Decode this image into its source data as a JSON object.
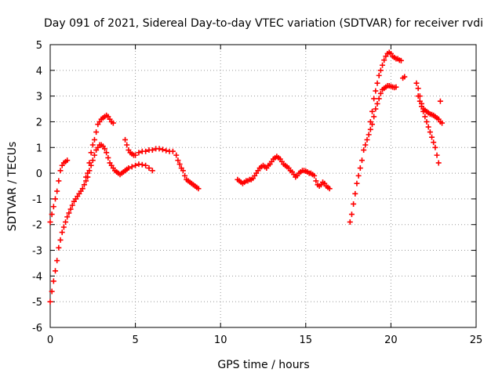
{
  "chart_data": {
    "type": "scatter",
    "title": "Day 091 of 2021, Sidereal Day-to-day VTEC variation (SDTVAR) for receiver rvdi",
    "xlabel": "GPS time / hours",
    "ylabel": "SDTVAR / TECUs",
    "xlim": [
      0,
      25
    ],
    "ylim": [
      -6,
      5
    ],
    "xticks": [
      0,
      5,
      10,
      15,
      20,
      25
    ],
    "yticks": [
      -6,
      -5,
      -4,
      -3,
      -2,
      -1,
      0,
      1,
      2,
      3,
      4,
      5
    ],
    "grid": true,
    "marker": "+",
    "color": "#ff0000",
    "series": [
      {
        "name": "seg1a",
        "points": [
          [
            0.0,
            -5.0
          ],
          [
            0.1,
            -4.6
          ],
          [
            0.2,
            -4.2
          ],
          [
            0.3,
            -3.8
          ],
          [
            0.4,
            -3.4
          ],
          [
            0.5,
            -2.9
          ],
          [
            0.6,
            -2.6
          ],
          [
            0.7,
            -2.3
          ],
          [
            0.8,
            -2.1
          ],
          [
            0.9,
            -1.9
          ],
          [
            1.0,
            -1.7
          ],
          [
            1.1,
            -1.55
          ],
          [
            1.2,
            -1.4
          ],
          [
            1.3,
            -1.25
          ],
          [
            1.4,
            -1.1
          ],
          [
            1.5,
            -1.0
          ],
          [
            1.6,
            -0.9
          ],
          [
            1.7,
            -0.8
          ],
          [
            1.8,
            -0.7
          ],
          [
            1.9,
            -0.6
          ],
          [
            2.0,
            -0.45
          ],
          [
            2.1,
            -0.3
          ],
          [
            2.2,
            -0.15
          ],
          [
            2.3,
            0.1
          ],
          [
            2.4,
            0.3
          ],
          [
            2.5,
            0.5
          ],
          [
            2.6,
            0.7
          ],
          [
            2.7,
            0.9
          ],
          [
            2.8,
            1.0
          ],
          [
            2.9,
            1.1
          ],
          [
            3.0,
            1.1
          ],
          [
            3.1,
            1.05
          ],
          [
            3.2,
            0.95
          ],
          [
            3.3,
            0.8
          ],
          [
            3.4,
            0.6
          ],
          [
            3.5,
            0.4
          ],
          [
            3.6,
            0.3
          ],
          [
            3.7,
            0.2
          ],
          [
            3.8,
            0.1
          ],
          [
            3.9,
            0.05
          ],
          [
            4.0,
            0.0
          ],
          [
            4.1,
            -0.05
          ],
          [
            4.2,
            0.0
          ],
          [
            4.3,
            0.05
          ],
          [
            4.4,
            0.1
          ],
          [
            4.5,
            0.15
          ],
          [
            4.6,
            0.2
          ],
          [
            4.8,
            0.25
          ],
          [
            5.0,
            0.3
          ],
          [
            5.2,
            0.35
          ],
          [
            5.4,
            0.33
          ],
          [
            5.6,
            0.3
          ],
          [
            5.8,
            0.2
          ],
          [
            6.0,
            0.1
          ]
        ]
      },
      {
        "name": "seg1b",
        "points": [
          [
            0.0,
            -1.9
          ],
          [
            0.1,
            -1.6
          ],
          [
            0.2,
            -1.3
          ],
          [
            0.3,
            -1.0
          ],
          [
            0.4,
            -0.7
          ],
          [
            0.5,
            -0.3
          ],
          [
            0.6,
            0.1
          ],
          [
            0.7,
            0.3
          ],
          [
            0.8,
            0.4
          ],
          [
            0.9,
            0.45
          ],
          [
            1.0,
            0.5
          ],
          [
            2.1,
            -0.15
          ],
          [
            2.2,
            0.0
          ],
          [
            2.3,
            0.4
          ],
          [
            2.4,
            0.8
          ],
          [
            2.5,
            1.1
          ],
          [
            2.6,
            1.3
          ],
          [
            2.7,
            1.6
          ],
          [
            2.8,
            1.9
          ],
          [
            2.9,
            2.0
          ],
          [
            3.0,
            2.1
          ],
          [
            3.1,
            2.15
          ],
          [
            3.2,
            2.2
          ],
          [
            3.3,
            2.25
          ],
          [
            3.4,
            2.2
          ],
          [
            3.5,
            2.1
          ],
          [
            3.6,
            2.0
          ],
          [
            3.7,
            1.95
          ],
          [
            4.4,
            1.3
          ],
          [
            4.5,
            1.1
          ],
          [
            4.6,
            0.9
          ],
          [
            4.7,
            0.8
          ],
          [
            4.8,
            0.75
          ],
          [
            4.9,
            0.7
          ],
          [
            5.0,
            0.7
          ],
          [
            5.2,
            0.8
          ],
          [
            5.4,
            0.85
          ],
          [
            5.6,
            0.85
          ],
          [
            5.8,
            0.9
          ],
          [
            6.0,
            0.9
          ],
          [
            6.2,
            0.95
          ],
          [
            6.4,
            0.95
          ],
          [
            6.6,
            0.92
          ],
          [
            6.8,
            0.88
          ],
          [
            7.0,
            0.85
          ],
          [
            7.2,
            0.85
          ],
          [
            7.4,
            0.7
          ],
          [
            7.5,
            0.5
          ],
          [
            7.6,
            0.35
          ],
          [
            7.7,
            0.2
          ],
          [
            7.8,
            0.1
          ],
          [
            7.9,
            -0.1
          ],
          [
            8.0,
            -0.25
          ],
          [
            8.1,
            -0.3
          ],
          [
            8.2,
            -0.35
          ],
          [
            8.3,
            -0.4
          ],
          [
            8.4,
            -0.45
          ],
          [
            8.5,
            -0.5
          ],
          [
            8.6,
            -0.55
          ],
          [
            8.7,
            -0.6
          ]
        ]
      },
      {
        "name": "seg2",
        "points": [
          [
            11.0,
            -0.25
          ],
          [
            11.1,
            -0.3
          ],
          [
            11.2,
            -0.35
          ],
          [
            11.3,
            -0.4
          ],
          [
            11.4,
            -0.35
          ],
          [
            11.5,
            -0.3
          ],
          [
            11.6,
            -0.3
          ],
          [
            11.7,
            -0.25
          ],
          [
            11.8,
            -0.25
          ],
          [
            11.9,
            -0.2
          ],
          [
            12.0,
            -0.1
          ],
          [
            12.1,
            0.0
          ],
          [
            12.2,
            0.1
          ],
          [
            12.3,
            0.2
          ],
          [
            12.4,
            0.25
          ],
          [
            12.5,
            0.3
          ],
          [
            12.6,
            0.25
          ],
          [
            12.7,
            0.2
          ],
          [
            12.8,
            0.3
          ],
          [
            12.9,
            0.35
          ],
          [
            13.0,
            0.45
          ],
          [
            13.1,
            0.55
          ],
          [
            13.2,
            0.6
          ],
          [
            13.3,
            0.65
          ],
          [
            13.4,
            0.6
          ],
          [
            13.5,
            0.55
          ],
          [
            13.6,
            0.45
          ],
          [
            13.7,
            0.35
          ],
          [
            13.8,
            0.3
          ],
          [
            13.9,
            0.25
          ],
          [
            14.0,
            0.2
          ],
          [
            14.1,
            0.1
          ],
          [
            14.2,
            0.05
          ],
          [
            14.3,
            -0.05
          ],
          [
            14.4,
            -0.15
          ],
          [
            14.5,
            -0.1
          ],
          [
            14.6,
            0.0
          ],
          [
            14.7,
            0.05
          ],
          [
            14.8,
            0.1
          ],
          [
            14.9,
            0.1
          ],
          [
            15.0,
            0.08
          ],
          [
            15.1,
            0.05
          ],
          [
            15.2,
            0.0
          ],
          [
            15.3,
            0.0
          ],
          [
            15.4,
            -0.05
          ],
          [
            15.5,
            -0.1
          ],
          [
            15.6,
            -0.3
          ],
          [
            15.7,
            -0.45
          ],
          [
            15.8,
            -0.5
          ],
          [
            15.9,
            -0.45
          ],
          [
            16.0,
            -0.35
          ],
          [
            16.1,
            -0.4
          ],
          [
            16.2,
            -0.5
          ],
          [
            16.3,
            -0.55
          ],
          [
            16.4,
            -0.6
          ]
        ]
      },
      {
        "name": "seg3a",
        "points": [
          [
            17.6,
            -1.9
          ],
          [
            17.7,
            -1.6
          ],
          [
            17.8,
            -1.2
          ],
          [
            17.9,
            -0.8
          ],
          [
            18.0,
            -0.4
          ],
          [
            18.1,
            -0.1
          ],
          [
            18.2,
            0.2
          ],
          [
            18.3,
            0.5
          ],
          [
            18.4,
            0.9
          ],
          [
            18.5,
            1.1
          ],
          [
            18.6,
            1.3
          ],
          [
            18.7,
            1.5
          ],
          [
            18.8,
            1.7
          ],
          [
            18.9,
            1.9
          ],
          [
            19.0,
            2.2
          ],
          [
            19.1,
            2.5
          ],
          [
            19.2,
            2.7
          ],
          [
            19.3,
            2.9
          ],
          [
            19.4,
            3.1
          ],
          [
            19.5,
            3.25
          ],
          [
            19.6,
            3.3
          ],
          [
            19.7,
            3.35
          ],
          [
            19.8,
            3.4
          ],
          [
            19.9,
            3.4
          ],
          [
            20.0,
            3.38
          ],
          [
            20.1,
            3.35
          ],
          [
            20.2,
            3.33
          ],
          [
            20.3,
            3.35
          ]
        ]
      },
      {
        "name": "seg3b",
        "points": [
          [
            18.8,
            2.0
          ],
          [
            18.9,
            2.4
          ],
          [
            19.0,
            2.9
          ],
          [
            19.1,
            3.2
          ],
          [
            19.2,
            3.5
          ],
          [
            19.3,
            3.8
          ],
          [
            19.4,
            4.0
          ],
          [
            19.5,
            4.2
          ],
          [
            19.6,
            4.4
          ],
          [
            19.7,
            4.55
          ],
          [
            19.8,
            4.65
          ],
          [
            19.9,
            4.7
          ],
          [
            20.0,
            4.65
          ],
          [
            20.1,
            4.55
          ],
          [
            20.2,
            4.5
          ],
          [
            20.3,
            4.45
          ],
          [
            20.4,
            4.45
          ],
          [
            20.5,
            4.4
          ],
          [
            20.6,
            4.38
          ],
          [
            20.7,
            3.7
          ],
          [
            20.8,
            3.75
          ]
        ]
      },
      {
        "name": "seg4a",
        "points": [
          [
            21.5,
            3.5
          ],
          [
            21.6,
            3.3
          ],
          [
            21.7,
            3.0
          ],
          [
            21.8,
            2.6
          ],
          [
            21.9,
            2.4
          ],
          [
            22.0,
            2.2
          ],
          [
            22.1,
            2.0
          ],
          [
            22.2,
            1.8
          ],
          [
            22.3,
            1.6
          ],
          [
            22.4,
            1.4
          ],
          [
            22.5,
            1.2
          ],
          [
            22.6,
            1.0
          ],
          [
            22.7,
            0.7
          ],
          [
            22.8,
            0.4
          ]
        ]
      },
      {
        "name": "seg4b",
        "points": [
          [
            21.6,
            3.0
          ],
          [
            21.7,
            2.8
          ],
          [
            21.8,
            2.7
          ],
          [
            21.9,
            2.5
          ],
          [
            22.0,
            2.45
          ],
          [
            22.1,
            2.4
          ],
          [
            22.2,
            2.35
          ],
          [
            22.3,
            2.3
          ],
          [
            22.4,
            2.28
          ],
          [
            22.5,
            2.25
          ],
          [
            22.6,
            2.2
          ],
          [
            22.7,
            2.15
          ],
          [
            22.8,
            2.1
          ],
          [
            22.9,
            2.0
          ],
          [
            23.0,
            1.95
          ],
          [
            22.9,
            2.8
          ]
        ]
      }
    ]
  }
}
